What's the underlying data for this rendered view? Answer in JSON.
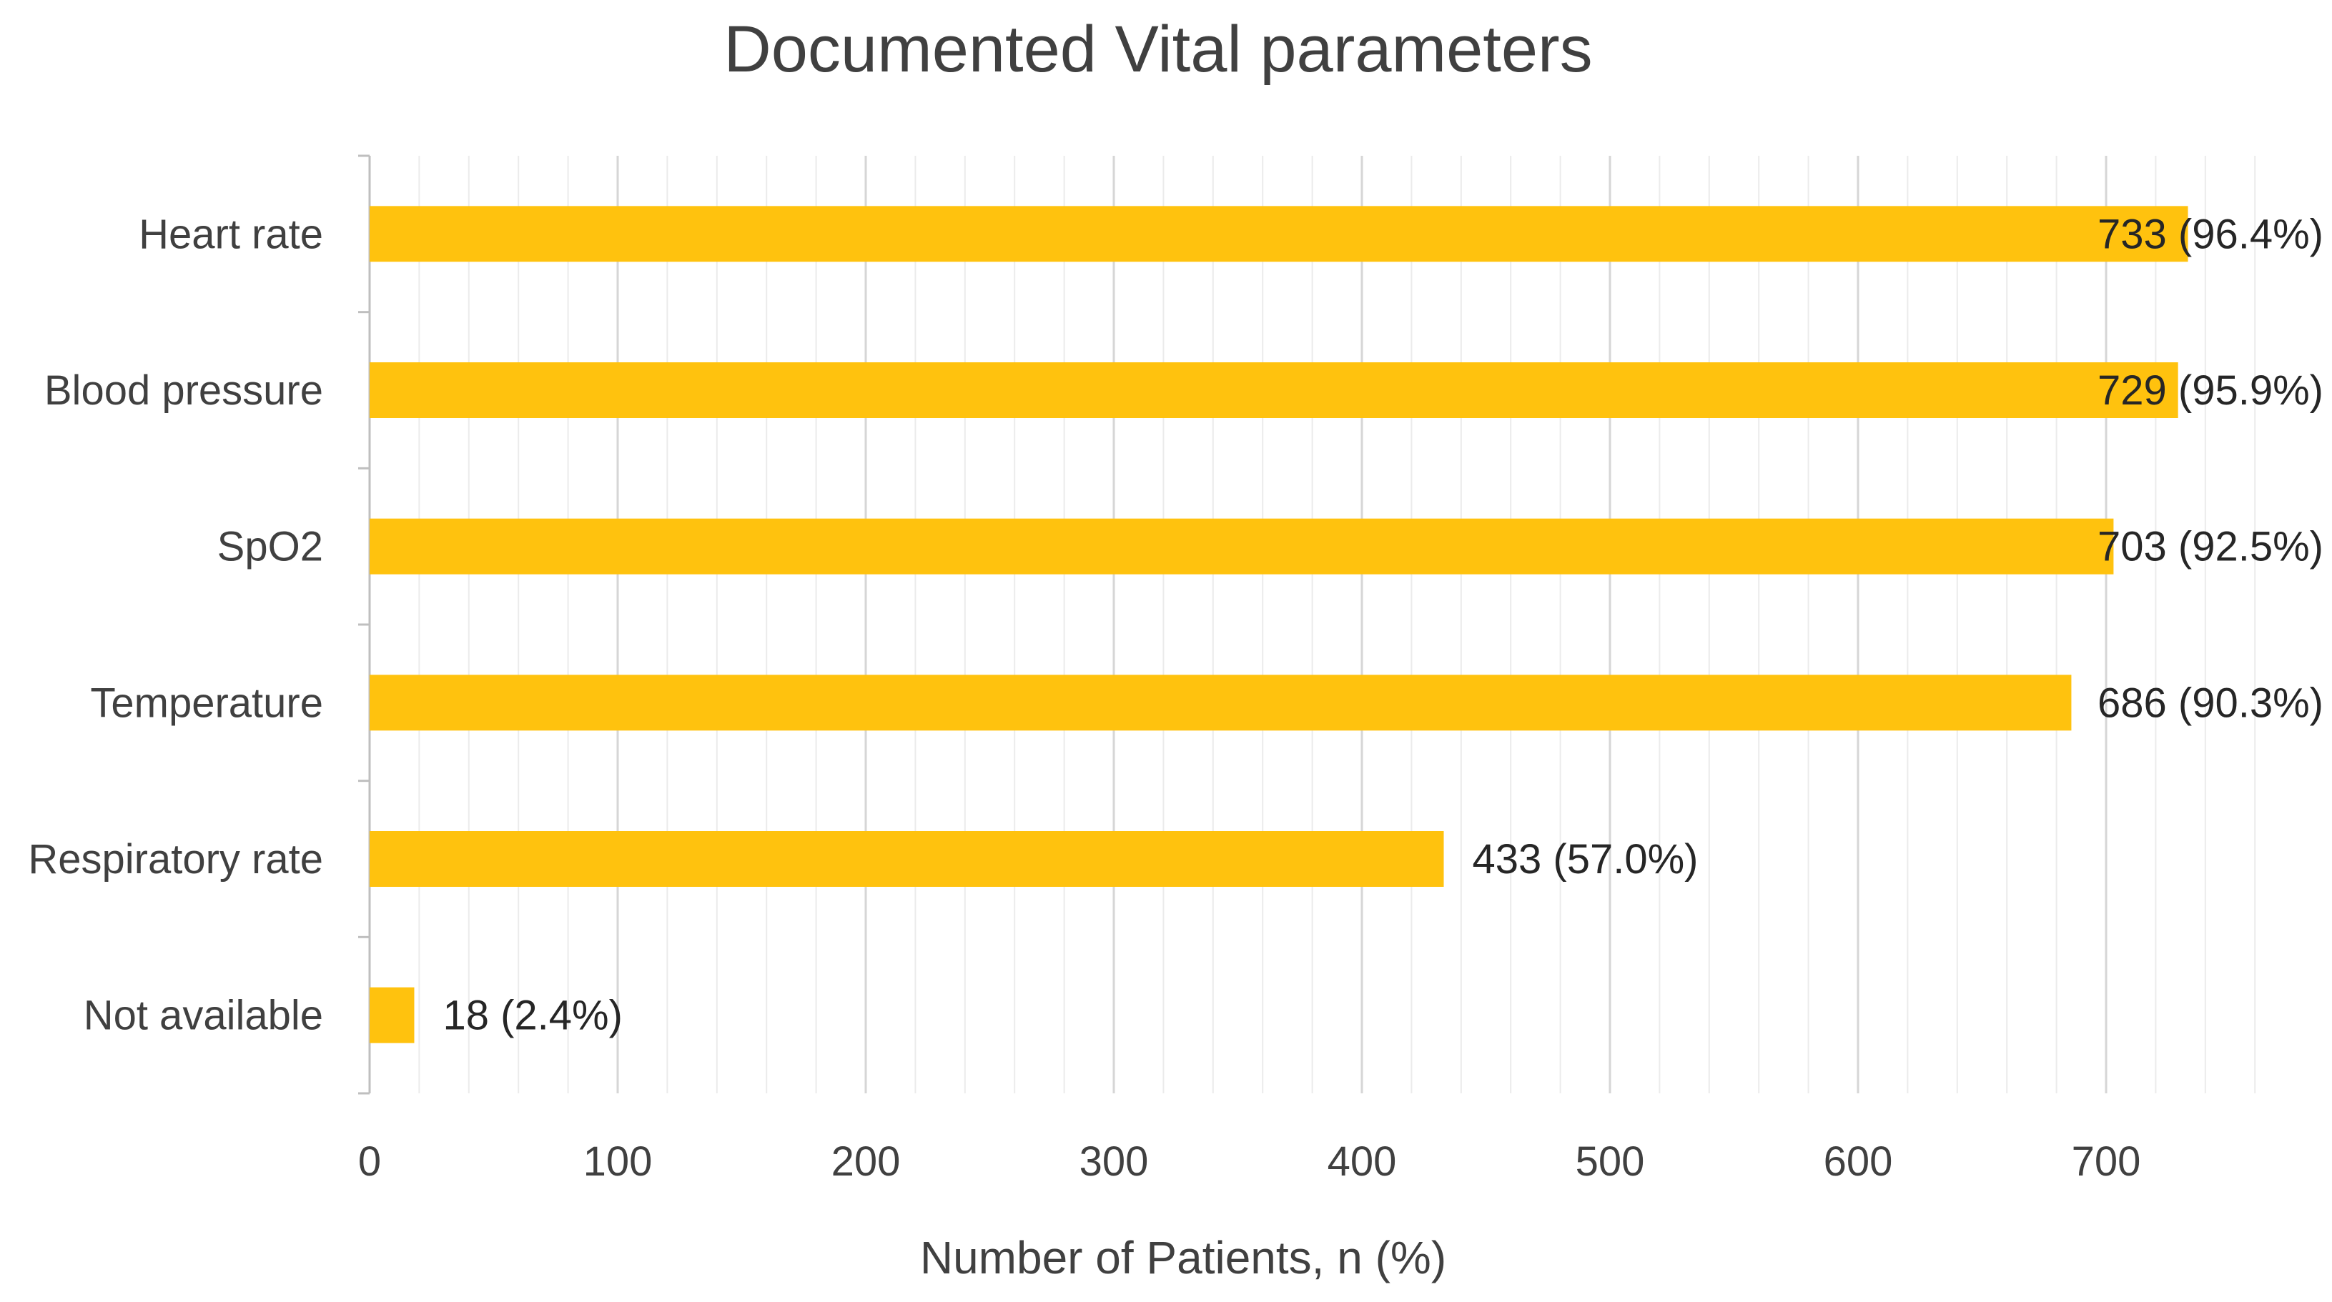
{
  "chart_data": {
    "type": "bar",
    "orientation": "horizontal",
    "title": "Documented Vital parameters",
    "xlabel": "Number of Patients, n (%)",
    "ylabel": "",
    "categories": [
      "Heart rate",
      "Blood pressure",
      "SpO2",
      "Temperature",
      "Respiratory rate",
      "Not available"
    ],
    "values": [
      733,
      729,
      703,
      686,
      433,
      18
    ],
    "data_labels": [
      "733 (96.4%)",
      "729 (95.9%)",
      "703 (92.5%)",
      "686 (90.3%)",
      "433 (57.0%)",
      "18 (2.4%)"
    ],
    "xlim": [
      0,
      760
    ],
    "xticks": [
      "0",
      "100",
      "200",
      "300",
      "400",
      "500",
      "600",
      "700"
    ],
    "bar_color": "#FFC20E",
    "grid": true,
    "legend": "none"
  }
}
